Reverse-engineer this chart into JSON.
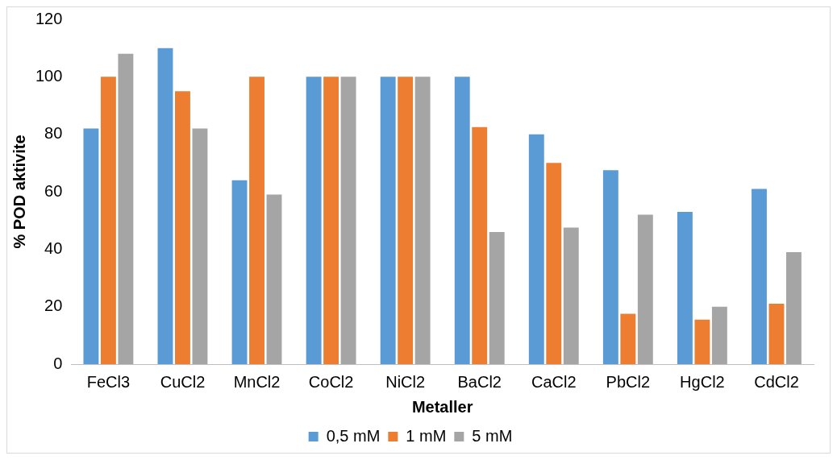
{
  "chart_data": {
    "type": "bar",
    "xlabel": "Metaller",
    "ylabel": "% POD aktivite",
    "categories": [
      "FeCl3",
      "CuCl2",
      "MnCl2",
      "CoCl2",
      "NiCl2",
      "BaCl2",
      "CaCl2",
      "PbCl2",
      "HgCl2",
      "CdCl2"
    ],
    "series": [
      {
        "name": "0,5 mM",
        "color": "#5b9bd5",
        "values": [
          82,
          110,
          64,
          100,
          100,
          100,
          80,
          67.5,
          53,
          61
        ]
      },
      {
        "name": "1 mM",
        "color": "#ed7d31",
        "values": [
          100,
          95,
          100,
          100,
          100,
          82.5,
          70,
          17.5,
          15.5,
          21
        ]
      },
      {
        "name": "5 mM",
        "color": "#a5a5a5",
        "values": [
          108,
          82,
          59,
          100,
          100,
          46,
          47.5,
          52,
          20,
          39
        ]
      }
    ],
    "ylim": [
      0,
      120
    ],
    "yticks": [
      0,
      20,
      40,
      60,
      80,
      100,
      120
    ],
    "grid": false,
    "legend": "bottom"
  }
}
